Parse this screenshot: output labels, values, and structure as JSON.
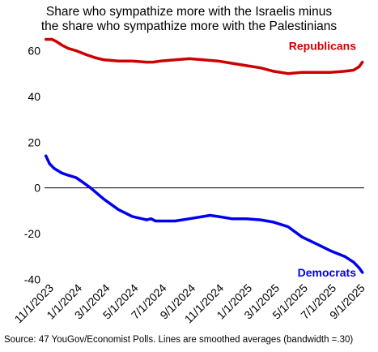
{
  "chart_data": {
    "type": "line",
    "title_lines": [
      "Share who sympathize more with the Israelis minus",
      "the share who sympathize more with the Palestinians"
    ],
    "caption": "Source: 47 YouGov/Economist Polls. Lines are smoothed averages (bandwidth =.30)",
    "xlabel": "",
    "ylabel": "",
    "x_tick_labels": [
      "11/1/2023",
      "1/1/2024",
      "3/1/2024",
      "5/1/2024",
      "7/1/2024",
      "9/1/2024",
      "11/1/2024",
      "1/1/2025",
      "3/1/2025",
      "5/1/2025",
      "7/1/2025",
      "9/1/2025"
    ],
    "x_range": [
      "2023-10-25",
      "2025-09-12"
    ],
    "y_ticks": [
      -40,
      -20,
      0,
      20,
      40,
      60
    ],
    "y_range": [
      -42,
      68
    ],
    "zero_line": true,
    "grid": false,
    "legend": "inline labels at right",
    "series": [
      {
        "name": "Republicans",
        "color": "#cc0000",
        "points": [
          [
            "2023-10-28",
            65
          ],
          [
            "2023-11-10",
            65
          ],
          [
            "2023-11-20",
            64
          ],
          [
            "2023-12-01",
            62.5
          ],
          [
            "2023-12-15",
            61
          ],
          [
            "2024-01-01",
            60
          ],
          [
            "2024-01-20",
            58.5
          ],
          [
            "2024-02-10",
            57
          ],
          [
            "2024-03-01",
            56
          ],
          [
            "2024-04-01",
            55.5
          ],
          [
            "2024-05-01",
            55.5
          ],
          [
            "2024-06-01",
            55
          ],
          [
            "2024-06-15",
            55
          ],
          [
            "2024-07-01",
            55.5
          ],
          [
            "2024-08-01",
            56
          ],
          [
            "2024-09-01",
            56.5
          ],
          [
            "2024-10-01",
            56
          ],
          [
            "2024-11-01",
            55.5
          ],
          [
            "2024-12-01",
            54.5
          ],
          [
            "2025-01-01",
            53.5
          ],
          [
            "2025-02-01",
            52.5
          ],
          [
            "2025-03-01",
            51
          ],
          [
            "2025-04-01",
            50
          ],
          [
            "2025-05-01",
            50.5
          ],
          [
            "2025-06-01",
            50.5
          ],
          [
            "2025-07-01",
            50.5
          ],
          [
            "2025-08-01",
            51
          ],
          [
            "2025-08-20",
            51.5
          ],
          [
            "2025-09-01",
            53
          ],
          [
            "2025-09-08",
            55
          ]
        ]
      },
      {
        "name": "Democrats",
        "color": "#0000ee",
        "points": [
          [
            "2023-10-28",
            14
          ],
          [
            "2023-11-05",
            10.5
          ],
          [
            "2023-11-15",
            8.5
          ],
          [
            "2023-12-01",
            6.5
          ],
          [
            "2023-12-15",
            5.5
          ],
          [
            "2024-01-01",
            4.5
          ],
          [
            "2024-01-15",
            2.5
          ],
          [
            "2024-02-01",
            0
          ],
          [
            "2024-03-01",
            -5
          ],
          [
            "2024-04-01",
            -9.5
          ],
          [
            "2024-05-01",
            -12.5
          ],
          [
            "2024-06-01",
            -14
          ],
          [
            "2024-06-10",
            -13.5
          ],
          [
            "2024-06-20",
            -14.5
          ],
          [
            "2024-08-01",
            -14.5
          ],
          [
            "2024-09-01",
            -13.5
          ],
          [
            "2024-10-01",
            -12.5
          ],
          [
            "2024-10-15",
            -12
          ],
          [
            "2024-11-01",
            -12.5
          ],
          [
            "2024-12-01",
            -13.5
          ],
          [
            "2025-01-01",
            -13.5
          ],
          [
            "2025-02-01",
            -14
          ],
          [
            "2025-03-01",
            -15
          ],
          [
            "2025-04-01",
            -17
          ],
          [
            "2025-05-01",
            -21.5
          ],
          [
            "2025-06-01",
            -24.5
          ],
          [
            "2025-07-01",
            -27.5
          ],
          [
            "2025-08-01",
            -30
          ],
          [
            "2025-08-20",
            -32.5
          ],
          [
            "2025-09-01",
            -35
          ],
          [
            "2025-09-08",
            -37
          ]
        ]
      }
    ]
  }
}
